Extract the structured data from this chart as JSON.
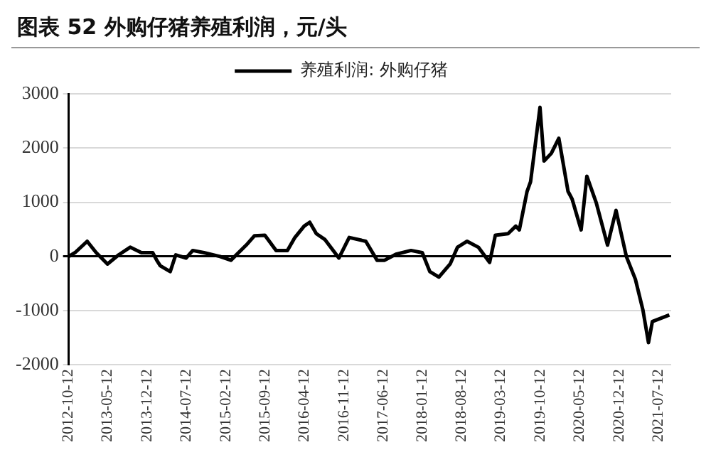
{
  "chart_data": {
    "type": "line",
    "title": "图表 52  外购仔猪养殖利润，元/头",
    "legend": "top",
    "x": [
      "2012-10-12",
      "2012-11-15",
      "2013-01-20",
      "2013-03-10",
      "2013-05-10",
      "2013-07-10",
      "2013-09-10",
      "2013-11-10",
      "2014-01-10",
      "2014-02-01",
      "2014-02-20",
      "2014-04-15",
      "2014-05-15",
      "2014-07-10",
      "2014-08-15",
      "2014-10-15",
      "2015-01-10",
      "2015-03-10",
      "2015-06-01",
      "2015-07-15",
      "2015-09-10",
      "2015-11-10",
      "2016-01-10",
      "2016-02-20",
      "2016-04-10",
      "2016-05-10",
      "2016-06-15",
      "2016-08-01",
      "2016-10-15",
      "2016-12-10",
      "2017-03-10",
      "2017-05-10",
      "2017-06-20",
      "2017-08-20",
      "2017-11-10",
      "2018-01-10",
      "2018-02-20",
      "2018-04-10",
      "2018-06-10",
      "2018-07-20",
      "2018-09-10",
      "2018-11-10",
      "2019-01-10",
      "2019-02-10",
      "2019-04-20",
      "2019-06-01",
      "2019-06-20",
      "2019-08-01",
      "2019-08-20",
      "2019-10-10",
      "2019-11-01",
      "2019-12-10",
      "2020-01-20",
      "2020-03-10",
      "2020-04-01",
      "2020-05-20",
      "2020-06-20",
      "2020-08-10",
      "2020-10-10",
      "2020-11-25",
      "2021-01-20",
      "2021-03-10",
      "2021-04-20",
      "2021-05-20",
      "2021-06-10",
      "2021-09-10"
    ],
    "series": [
      {
        "name": "养殖利润: 外购仔猪",
        "color": "#000000",
        "values": [
          0,
          70,
          280,
          70,
          -140,
          30,
          170,
          70,
          70,
          -70,
          -170,
          -280,
          30,
          -30,
          110,
          70,
          0,
          -70,
          210,
          380,
          390,
          110,
          110,
          350,
          560,
          630,
          420,
          310,
          -30,
          350,
          280,
          -70,
          -70,
          40,
          110,
          70,
          -280,
          -380,
          -140,
          170,
          280,
          170,
          -110,
          390,
          420,
          560,
          490,
          1200,
          1380,
          2750,
          1760,
          1900,
          2180,
          1200,
          1060,
          490,
          1480,
          990,
          210,
          850,
          0,
          -420,
          -990,
          -1590,
          -1200,
          -1080
        ]
      }
    ],
    "xlim": [
      "2012-10-12",
      "2021-09-20"
    ],
    "xticks": [
      "2012-10-12",
      "2013-05-12",
      "2013-12-12",
      "2014-07-12",
      "2015-02-12",
      "2015-09-12",
      "2016-04-12",
      "2016-11-12",
      "2017-06-12",
      "2018-01-12",
      "2018-08-12",
      "2019-03-12",
      "2019-10-12",
      "2020-05-12",
      "2020-12-12",
      "2021-07-12"
    ],
    "ylim": [
      -2000,
      3000
    ],
    "yticks": [
      -2000,
      -1000,
      0,
      1000,
      2000,
      3000
    ],
    "grid": "y",
    "marker": "none",
    "line_style": "solid"
  }
}
